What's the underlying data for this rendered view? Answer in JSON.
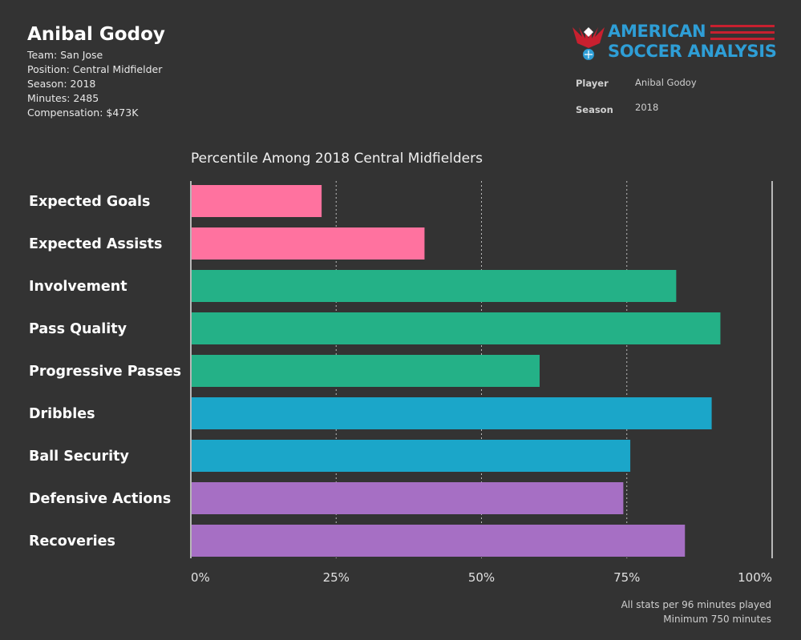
{
  "player": {
    "name": "Anibal Godoy",
    "team": "Team: San Jose",
    "position": "Position: Central Midfielder",
    "season": "Season: 2018",
    "minutes": "Minutes: 2485",
    "compensation": "Compensation: $473K"
  },
  "logo": {
    "line1": "AMERICAN",
    "line2": "SOCCER ANALYSIS",
    "text_color": "#2e9ed6",
    "accent_color": "#c8202f"
  },
  "filters": [
    {
      "label": "Player",
      "value": "Anibal Godoy"
    },
    {
      "label": "Season",
      "value": "2018"
    }
  ],
  "footnotes": [
    "All stats per 96 minutes played",
    "Minimum 750 minutes"
  ],
  "chart_data": {
    "type": "bar",
    "orientation": "horizontal",
    "title": "Percentile Among 2018 Central Midfielders",
    "categories": [
      "Expected Goals",
      "Expected Assists",
      "Involvement",
      "Pass Quality",
      "Progressive Passes",
      "Dribbles",
      "Ball Security",
      "Defensive Actions",
      "Recoveries"
    ],
    "values": [
      22.5,
      40.2,
      83.5,
      91.1,
      60.0,
      89.6,
      75.6,
      74.4,
      85.0
    ],
    "colors": [
      "#ff729f",
      "#ff729f",
      "#24b187",
      "#24b187",
      "#24b187",
      "#1ba6c9",
      "#1ba6c9",
      "#a66fc4",
      "#a66fc4"
    ],
    "xlim": [
      0,
      100
    ],
    "x_ticks": [
      "0%",
      "25%",
      "50%",
      "75%",
      "100%"
    ],
    "grid": "vertical dotted"
  }
}
